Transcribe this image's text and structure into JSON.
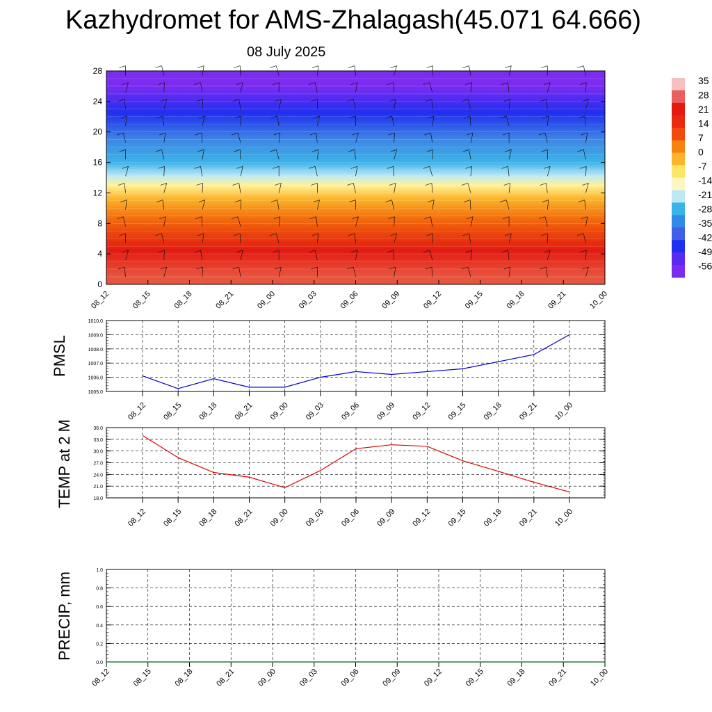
{
  "header": {
    "title": "Kazhydromet for AMS-Zhalagash(45.071 64.666)",
    "date": "08 July 2025"
  },
  "colorbar": {
    "labels": [
      "35",
      "28",
      "21",
      "14",
      "7",
      "0",
      "-7",
      "-14",
      "-21",
      "-28",
      "-35",
      "-42",
      "-49",
      "-56"
    ]
  },
  "chart_data": [
    {
      "type": "heatmap",
      "title": "",
      "xlabel": "",
      "ylabel": "",
      "x": [
        "08_12",
        "08_15",
        "08_18",
        "08_21",
        "09_00",
        "09_03",
        "09_06",
        "09_09",
        "09_12",
        "09_15",
        "09_18",
        "09_21",
        "10_00"
      ],
      "ylim": [
        0,
        28
      ],
      "yticks": [
        0,
        4,
        8,
        12,
        16,
        20,
        24,
        28
      ],
      "bands": [
        {
          "y0": 0,
          "y1": 2,
          "color": "#e8553f"
        },
        {
          "y0": 2,
          "y1": 7,
          "color": "#e31a10"
        },
        {
          "y0": 7,
          "y1": 10,
          "color": "#f26a0c"
        },
        {
          "y0": 10,
          "y1": 12.5,
          "color": "#fcb52a"
        },
        {
          "y0": 12.5,
          "y1": 13.5,
          "color": "#fef39a"
        },
        {
          "y0": 13.5,
          "y1": 15,
          "color": "#bfe8f5"
        },
        {
          "y0": 15,
          "y1": 17,
          "color": "#3ab3ea"
        },
        {
          "y0": 17,
          "y1": 21,
          "color": "#3f86e3"
        },
        {
          "y0": 21,
          "y1": 24,
          "color": "#1f2ff0"
        },
        {
          "y0": 24,
          "y1": 28,
          "color": "#7c2bf0"
        }
      ],
      "colorbar_levels": [
        35,
        28,
        21,
        14,
        7,
        0,
        -7,
        -14,
        -21,
        -28,
        -35,
        -42,
        -49,
        -56
      ]
    },
    {
      "type": "line",
      "title": "",
      "xlabel": "",
      "ylabel": "PMSL",
      "x": [
        "08_12",
        "08_15",
        "08_18",
        "08_21",
        "09_00",
        "09_03",
        "09_06",
        "09_09",
        "09_12",
        "09_15",
        "09_18",
        "09_21",
        "10_00"
      ],
      "ylim": [
        1005.0,
        1010.0
      ],
      "yticks": [
        "1005.0",
        "1006.0",
        "1007.0",
        "1008.0",
        "1009.0",
        "1010.0"
      ],
      "series": [
        {
          "color": "#0000cc",
          "values": [
            1006.1,
            1005.2,
            1005.9,
            1005.3,
            1005.3,
            1006.0,
            1006.4,
            1006.2,
            1006.4,
            1006.6,
            1007.1,
            1007.6,
            1009.0
          ]
        }
      ],
      "grid": true
    },
    {
      "type": "line",
      "title": "",
      "xlabel": "",
      "ylabel": "TEMP at 2 M",
      "x": [
        "08_12",
        "08_15",
        "08_18",
        "08_21",
        "09_00",
        "09_03",
        "09_06",
        "09_09",
        "09_12",
        "09_15",
        "09_18",
        "09_21",
        "10_00"
      ],
      "ylim": [
        18.0,
        36.0
      ],
      "yticks": [
        "18.0",
        "21.0",
        "24.0",
        "27.0",
        "30.0",
        "33.0",
        "36.0"
      ],
      "series": [
        {
          "color": "#e00000",
          "values": [
            34.0,
            28.3,
            24.5,
            23.3,
            20.6,
            25.0,
            30.6,
            31.6,
            31.2,
            27.5,
            24.8,
            22.0,
            19.5
          ]
        }
      ],
      "grid": true
    },
    {
      "type": "line",
      "title": "",
      "xlabel": "",
      "ylabel": "PRECIP, mm",
      "x": [
        "08_12",
        "08_15",
        "08_18",
        "08_21",
        "09_00",
        "09_03",
        "09_06",
        "09_09",
        "09_12",
        "09_15",
        "09_18",
        "09_21",
        "10_00"
      ],
      "ylim": [
        0.0,
        1.0
      ],
      "yticks": [
        "0.0",
        "0.2",
        "0.4",
        "0.6",
        "0.8",
        "1.0"
      ],
      "series": [
        {
          "color": "#006400",
          "values": [
            0,
            0,
            0,
            0,
            0,
            0,
            0,
            0,
            0,
            0,
            0,
            0,
            0
          ]
        }
      ],
      "grid": true
    }
  ]
}
